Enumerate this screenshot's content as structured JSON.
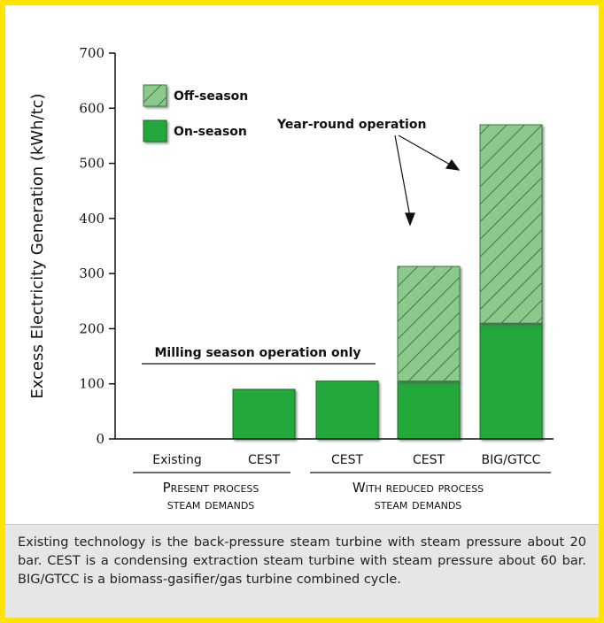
{
  "chart_data": {
    "type": "bar",
    "ylabel": "Excess Electricity Generation (kWh/tc)",
    "ylim": [
      0,
      700
    ],
    "yticks": [
      0,
      100,
      200,
      300,
      400,
      500,
      600,
      700
    ],
    "categories": [
      "Existing",
      "CEST",
      "CEST",
      "CEST",
      "BIG/GTCC"
    ],
    "series": [
      {
        "name": "On-season",
        "values": [
          0,
          90,
          105,
          105,
          210
        ],
        "color": "#22a83a",
        "pattern": "solid"
      },
      {
        "name": "Off-season",
        "values": [
          0,
          0,
          0,
          208,
          360
        ],
        "color": "#8cc98c",
        "pattern": "hatch"
      }
    ],
    "stacked": true,
    "legend": {
      "placement": "top-left"
    },
    "groups": [
      {
        "line1": "Present process",
        "line2": "steam demands",
        "categories": [
          0,
          1
        ]
      },
      {
        "line1": "With reduced process",
        "line2": "steam demands",
        "categories": [
          2,
          3,
          4
        ]
      }
    ],
    "annotations": {
      "milling": "Milling season operation only",
      "year_round": "Year-round operation"
    }
  },
  "caption": "Existing technology is the back-pressure steam turbine with steam pressure about 20 bar. CEST is a condensing extraction steam turbine with steam pressure about 60 bar. BIG/GTCC is a biomass-gasifier/gas turbine combined cycle."
}
